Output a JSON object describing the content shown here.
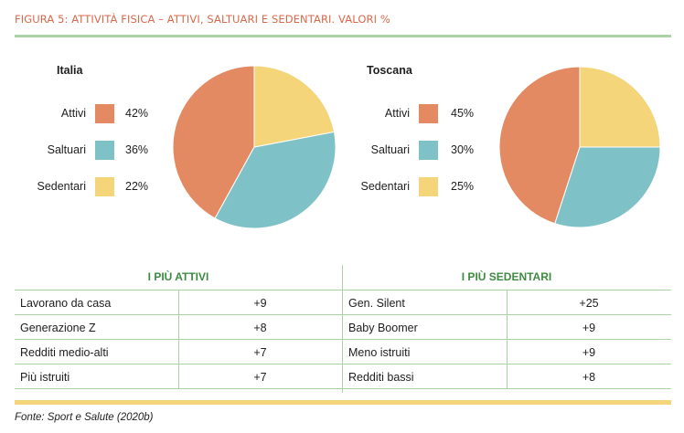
{
  "figure": {
    "title": "FIGURA 5: ATTIVITÀ FISICA – ATTIVI, SALTUARI E SEDENTARI. VALORI %",
    "source": "Fonte: Sport e Salute (2020b)"
  },
  "colors": {
    "attivi": "#e48a62",
    "saltuari": "#7ec2c8",
    "sedentari": "#f5d57a",
    "accent_green": "#a9d3a3",
    "title_red": "#d8694a"
  },
  "chart_data": [
    {
      "type": "pie",
      "title": "Italia",
      "labels": [
        "Attivi",
        "Saltuari",
        "Sedentari"
      ],
      "values": [
        42,
        36,
        22
      ],
      "value_labels": [
        "42%",
        "36%",
        "22%"
      ]
    },
    {
      "type": "pie",
      "title": "Toscana",
      "labels": [
        "Attivi",
        "Saltuari",
        "Sedentari"
      ],
      "values": [
        45,
        30,
        25
      ],
      "value_labels": [
        "45%",
        "30%",
        "25%"
      ]
    },
    {
      "type": "table",
      "columns": [
        "I PIÙ ATTIVI",
        "I PIÙ SEDENTARI"
      ],
      "attivi": [
        {
          "label": "Lavorano da casa",
          "value": "+9"
        },
        {
          "label": "Generazione Z",
          "value": "+8"
        },
        {
          "label": "Redditi medio-alti",
          "value": "+7"
        },
        {
          "label": "Più istruiti",
          "value": "+7"
        }
      ],
      "sedentari": [
        {
          "label": "Gen. Silent",
          "value": "+25"
        },
        {
          "label": "Baby Boomer",
          "value": "+9"
        },
        {
          "label": "Meno istruiti",
          "value": "+9"
        },
        {
          "label": "Redditi bassi",
          "value": "+8"
        }
      ]
    }
  ]
}
